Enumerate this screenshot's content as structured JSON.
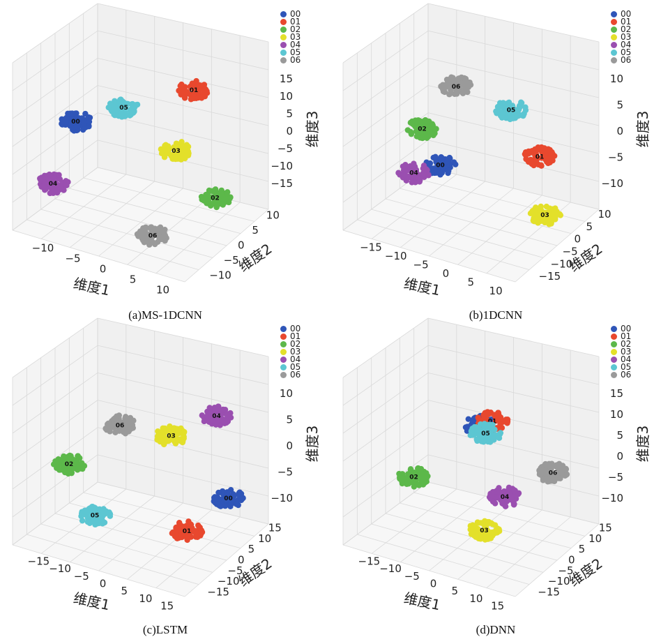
{
  "colors": {
    "00": "#2f55b8",
    "01": "#e8482e",
    "02": "#5cb84a",
    "03": "#e3e02a",
    "04": "#9a4fb0",
    "05": "#5cc6d2",
    "06": "#9a9a9a"
  },
  "chart_data": [
    {
      "type": "scatter",
      "subtype": "3d-scatter",
      "caption": "(a)MS-1DCNN",
      "xlabel": "维度1",
      "ylabel": "维度2",
      "zlabel": "维度3",
      "xticks": [
        "−10",
        "−5",
        "0",
        "5",
        "10"
      ],
      "yticks": [
        "−10",
        "−5",
        "0",
        "5",
        "10"
      ],
      "zticks": [
        "15",
        "10",
        "5",
        "0",
        "−5",
        "−10",
        "−15"
      ],
      "legend": [
        "00",
        "01",
        "02",
        "03",
        "04",
        "05",
        "06"
      ],
      "clusters": [
        {
          "label": "00",
          "x": -9,
          "y": 2,
          "z": 8
        },
        {
          "label": "01",
          "x": 10,
          "y": 4,
          "z": 6
        },
        {
          "label": "02",
          "x": 8,
          "y": -5,
          "z": -10
        },
        {
          "label": "03",
          "x": 5,
          "y": 0,
          "z": -2
        },
        {
          "label": "04",
          "x": -13,
          "y": 1,
          "z": -2
        },
        {
          "label": "05",
          "x": 0,
          "y": 5,
          "z": 6
        },
        {
          "label": "06",
          "x": -2,
          "y": -6,
          "z": -13
        }
      ]
    },
    {
      "type": "scatter",
      "subtype": "3d-scatter",
      "caption": "(b)1DCNN",
      "xlabel": "维度1",
      "ylabel": "维度2",
      "zlabel": "维度3",
      "xticks": [
        "−15",
        "−10",
        "−5",
        "0",
        "5",
        "10"
      ],
      "yticks": [
        "−15",
        "−10",
        "−5",
        "0",
        "5",
        "10"
      ],
      "zticks": [
        "10",
        "5",
        "0",
        "−5",
        "−10"
      ],
      "legend": [
        "00",
        "01",
        "02",
        "03",
        "04",
        "05",
        "06"
      ],
      "clusters": [
        {
          "label": "00",
          "x": -5,
          "y": 0,
          "z": -1
        },
        {
          "label": "01",
          "x": 10,
          "y": 0,
          "z": -5
        },
        {
          "label": "02",
          "x": -6,
          "y": 3,
          "z": 5
        },
        {
          "label": "03",
          "x": 5,
          "y": -10,
          "z": -10
        },
        {
          "label": "04",
          "x": -9,
          "y": 0,
          "z": -1
        },
        {
          "label": "05",
          "x": 8,
          "y": 4,
          "z": 3
        },
        {
          "label": "06",
          "x": 2,
          "y": 8,
          "z": 8
        }
      ]
    },
    {
      "type": "scatter",
      "subtype": "3d-scatter",
      "caption": "(c)LSTM",
      "xlabel": "维度1",
      "ylabel": "维度2",
      "zlabel": "维度3",
      "xticks": [
        "−15",
        "−10",
        "−5",
        "0",
        "5",
        "10",
        "15"
      ],
      "yticks": [
        "−15",
        "−10",
        "−5",
        "0",
        "5",
        "10",
        "15"
      ],
      "zticks": [
        "10",
        "5",
        "0",
        "−5",
        "−10"
      ],
      "legend": [
        "00",
        "01",
        "02",
        "03",
        "04",
        "05",
        "06"
      ],
      "clusters": [
        {
          "label": "00",
          "x": 10,
          "y": -5,
          "z": -8
        },
        {
          "label": "01",
          "x": 2,
          "y": -8,
          "z": -10
        },
        {
          "label": "02",
          "x": -10,
          "y": 2,
          "z": 3
        },
        {
          "label": "03",
          "x": 6,
          "y": 3,
          "z": 2
        },
        {
          "label": "04",
          "x": 14,
          "y": 5,
          "z": 2
        },
        {
          "label": "05",
          "x": -9,
          "y": -3,
          "z": -5
        },
        {
          "label": "06",
          "x": 0,
          "y": 6,
          "z": 5
        }
      ]
    },
    {
      "type": "scatter",
      "subtype": "3d-scatter",
      "caption": "(d)DNN",
      "xlabel": "维度1",
      "ylabel": "维度2",
      "zlabel": "维度3",
      "xticks": [
        "−15",
        "−10",
        "−5",
        "0",
        "5",
        "10",
        "15"
      ],
      "yticks": [
        "−15",
        "−10",
        "−5",
        "0",
        "5",
        "10",
        "15"
      ],
      "zticks": [
        "15",
        "10",
        "5",
        "0",
        "−5",
        "−10"
      ],
      "legend": [
        "00",
        "01",
        "02",
        "03",
        "04",
        "05",
        "06"
      ],
      "clusters": [
        {
          "label": "00",
          "x": 2,
          "y": 2,
          "z": 6
        },
        {
          "label": "01",
          "x": 4,
          "y": 2,
          "z": 6
        },
        {
          "label": "02",
          "x": -9,
          "y": 0,
          "z": 1
        },
        {
          "label": "03",
          "x": -3,
          "y": -8,
          "z": -8
        },
        {
          "label": "04",
          "x": 3,
          "y": -3,
          "z": -6
        },
        {
          "label": "05",
          "x": 3,
          "y": 2,
          "z": 4
        },
        {
          "label": "06",
          "x": 12,
          "y": 0,
          "z": -6
        }
      ]
    }
  ]
}
